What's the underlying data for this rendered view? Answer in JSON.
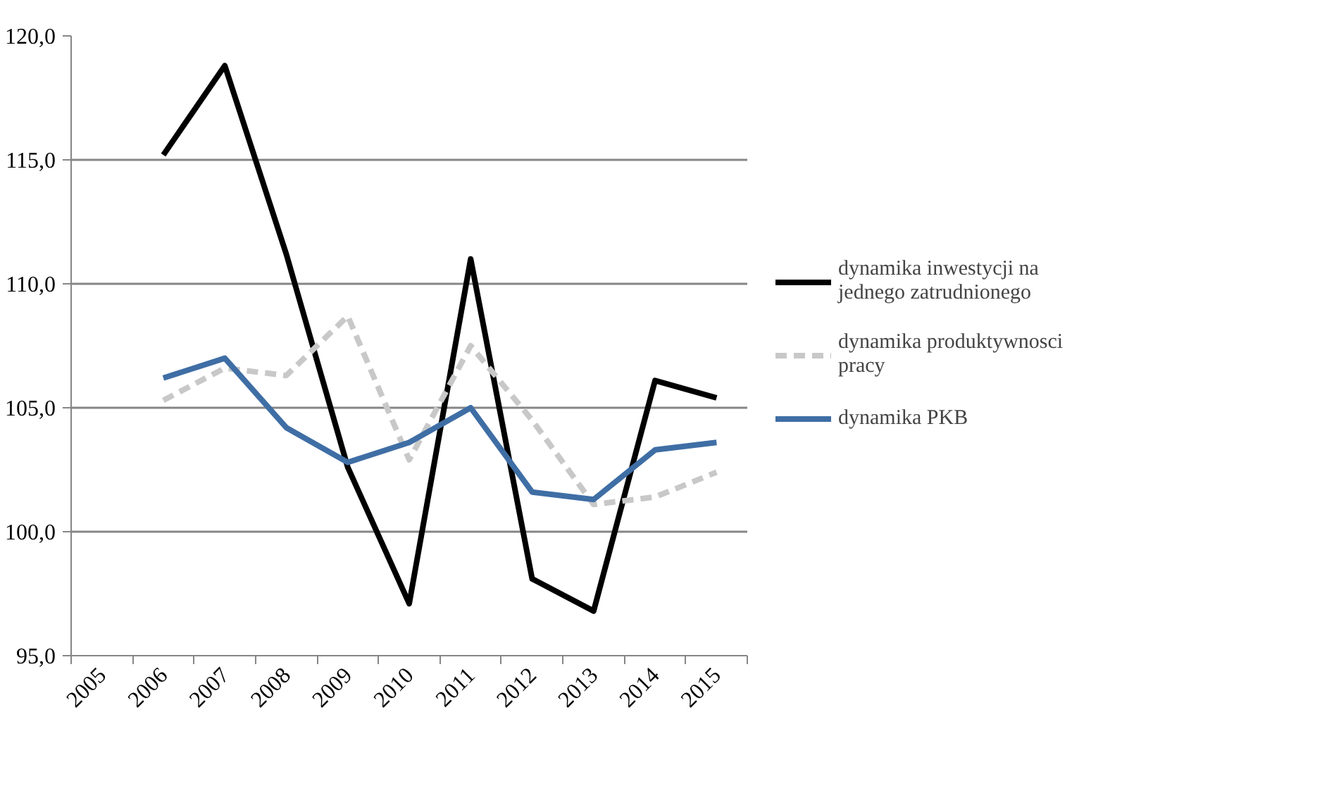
{
  "chart_data": {
    "type": "line",
    "categories": [
      "2005",
      "2006",
      "2007",
      "2008",
      "2009",
      "2010",
      "2011",
      "2012",
      "2013",
      "2014",
      "2015"
    ],
    "series": [
      {
        "name": "dynamika inwestycji na jednego zatrudnionego",
        "color": "#000000",
        "line_style": "solid",
        "values": [
          null,
          115.2,
          118.8,
          111.2,
          102.6,
          97.1,
          111.0,
          98.1,
          96.8,
          106.1,
          105.4
        ]
      },
      {
        "name": "dynamika produktywnosci pracy",
        "color": "#c8c8c8",
        "line_style": "dashed",
        "values": [
          null,
          105.3,
          106.6,
          106.3,
          108.7,
          102.9,
          107.5,
          104.5,
          101.1,
          101.4,
          102.4
        ]
      },
      {
        "name": "dynamika PKB",
        "color": "#3f6ea5",
        "line_style": "solid",
        "values": [
          null,
          106.2,
          107.0,
          104.2,
          102.8,
          103.6,
          105.0,
          101.6,
          101.3,
          103.3,
          103.6
        ]
      }
    ],
    "ylim": [
      95,
      120
    ],
    "yticks": [
      {
        "value": 95,
        "label": "95,0"
      },
      {
        "value": 100,
        "label": "100,0"
      },
      {
        "value": 105,
        "label": "105,0"
      },
      {
        "value": 110,
        "label": "110,0"
      },
      {
        "value": 115,
        "label": "115,0"
      },
      {
        "value": 120,
        "label": "120,0"
      }
    ],
    "grid": "y",
    "legend": "right",
    "marker": "none"
  }
}
